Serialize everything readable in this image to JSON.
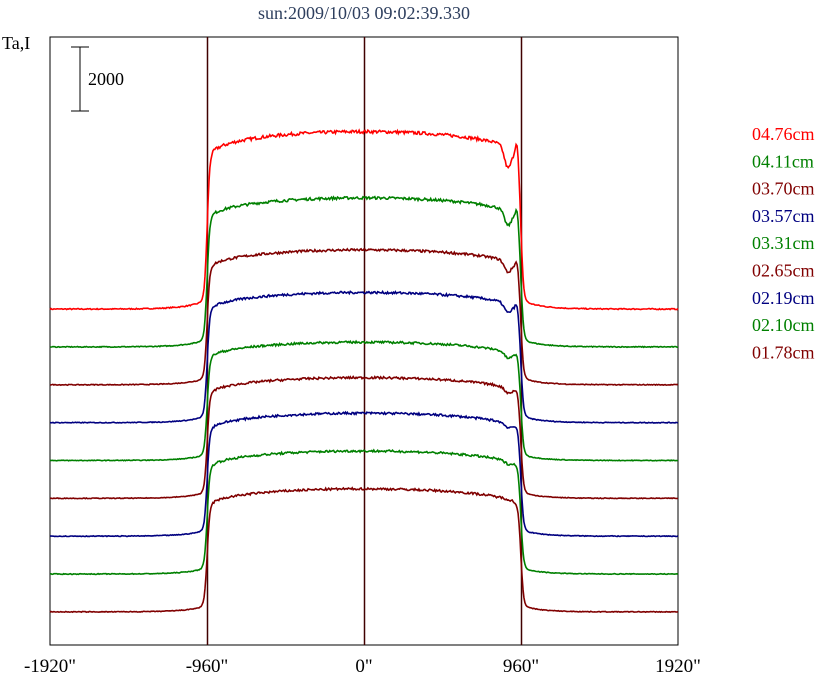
{
  "chart_data": {
    "type": "line",
    "title": "sun:2009/10/03 09:02:39.330",
    "ylabel": "Ta,I",
    "xlabel": "",
    "scale_bar_label": "2000",
    "scale_bar_value": 2000,
    "x_ticks": [
      {
        "value": -1920,
        "label": "-1920\""
      },
      {
        "value": -960,
        "label": "-960\""
      },
      {
        "value": 0,
        "label": "0\""
      },
      {
        "value": 960,
        "label": "960\""
      },
      {
        "value": 1920,
        "label": "1920\""
      }
    ],
    "xlim": [
      -1920,
      1920
    ],
    "ylim": [
      0,
      25700
    ],
    "vertical_lines": [
      -960,
      0,
      960
    ],
    "grid": false,
    "legend_position": "right",
    "series": [
      {
        "name": "04.76cm",
        "color": "#ff0000",
        "offset": 14200,
        "amplitude": 7500,
        "dip": 0.12
      },
      {
        "name": "04.11cm",
        "color": "#008000",
        "offset": 12600,
        "amplitude": 6300,
        "dip": 0.1
      },
      {
        "name": "03.70cm",
        "color": "#800000",
        "offset": 11000,
        "amplitude": 5700,
        "dip": 0.08
      },
      {
        "name": "03.57cm",
        "color": "#000080",
        "offset": 9400,
        "amplitude": 5500,
        "dip": 0.07
      },
      {
        "name": "03.31cm",
        "color": "#008000",
        "offset": 7800,
        "amplitude": 5000,
        "dip": 0.05
      },
      {
        "name": "02.65cm",
        "color": "#800000",
        "offset": 6200,
        "amplitude": 5100,
        "dip": 0.04
      },
      {
        "name": "02.19cm",
        "color": "#000080",
        "offset": 4600,
        "amplitude": 5200,
        "dip": 0.03
      },
      {
        "name": "02.10cm",
        "color": "#008000",
        "offset": 3000,
        "amplitude": 5200,
        "dip": 0.02
      },
      {
        "name": "01.78cm",
        "color": "#800000",
        "offset": 1400,
        "amplitude": 5200,
        "dip": 0.0
      }
    ]
  }
}
